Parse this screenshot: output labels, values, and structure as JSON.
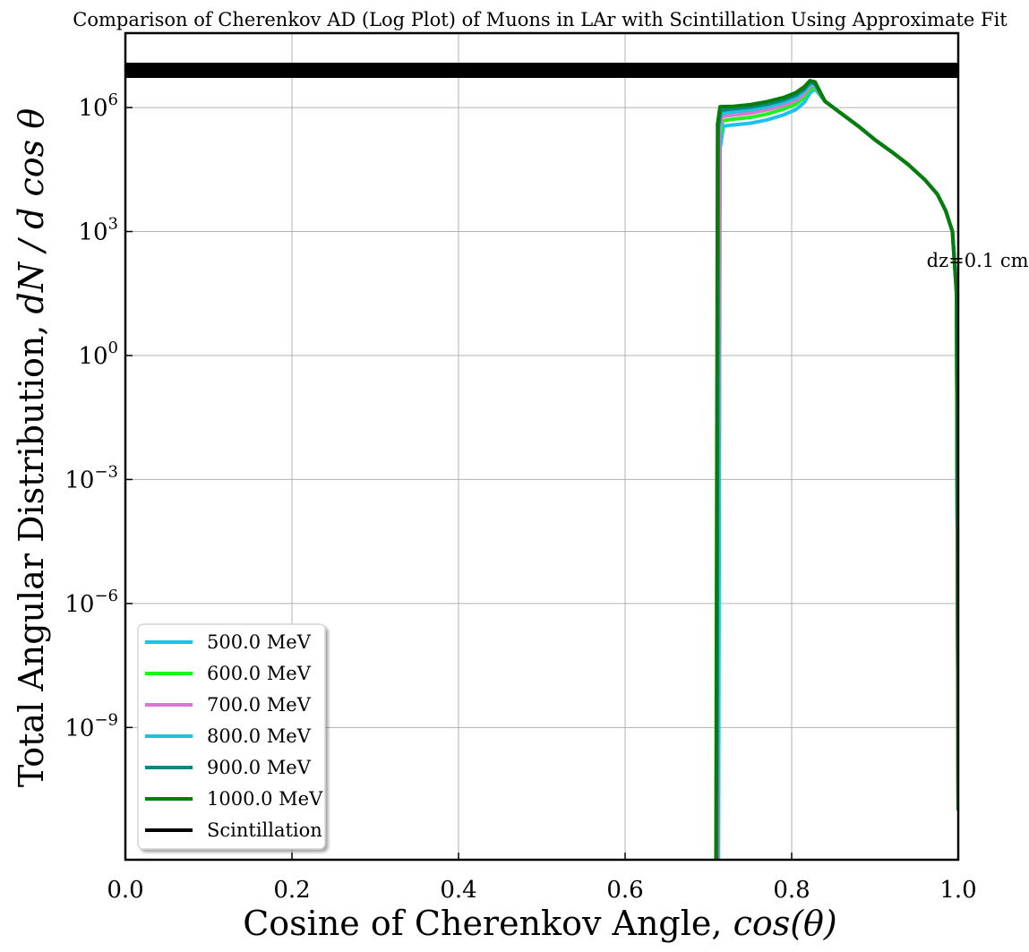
{
  "chart_data": {
    "type": "line",
    "title": "Comparison of Cherenkov AD (Log Plot) of Muons in LAr with Scintillation Using Approximate Fit",
    "xlabel": "Cosine of Cherenkov Angle,",
    "xlabel_math": "cos(θ)",
    "ylabel": "Total Angular Distribution,",
    "ylabel_math": "dN / d cos θ",
    "xlim": [
      0.0,
      1.0
    ],
    "ylim_log10": [
      -12.2,
      7.8
    ],
    "y_scale": "log",
    "grid": true,
    "legend_position": "lower-left",
    "x_ticks": [
      {
        "value": 0.0,
        "label": "0.0"
      },
      {
        "value": 0.2,
        "label": "0.2"
      },
      {
        "value": 0.4,
        "label": "0.4"
      },
      {
        "value": 0.6,
        "label": "0.6"
      },
      {
        "value": 0.8,
        "label": "0.8"
      },
      {
        "value": 1.0,
        "label": "1.0"
      }
    ],
    "y_ticks": [
      {
        "exp": 6,
        "base": "10",
        "sup": "6"
      },
      {
        "exp": 3,
        "base": "10",
        "sup": "3"
      },
      {
        "exp": 0,
        "base": "10",
        "sup": "0"
      },
      {
        "exp": -3,
        "base": "10",
        "sup": "−3"
      },
      {
        "exp": -6,
        "base": "10",
        "sup": "−6"
      },
      {
        "exp": -9,
        "base": "10",
        "sup": "−9"
      }
    ],
    "annotation": {
      "text": "dz=0.1 cm",
      "x": 0.962,
      "y_log10": 2.3
    },
    "series": [
      {
        "name": "500.0 MeV",
        "color": "#1ec0ef",
        "points": [
          [
            0.712,
            -13.0
          ],
          [
            0.714,
            5.0
          ],
          [
            0.718,
            5.55
          ],
          [
            0.73,
            5.58
          ],
          [
            0.75,
            5.62
          ],
          [
            0.77,
            5.7
          ],
          [
            0.79,
            5.82
          ],
          [
            0.805,
            5.95
          ],
          [
            0.815,
            6.12
          ],
          [
            0.822,
            6.35
          ],
          [
            0.828,
            6.45
          ],
          [
            0.84,
            6.15
          ],
          [
            0.86,
            5.85
          ],
          [
            0.88,
            5.55
          ],
          [
            0.9,
            5.22
          ],
          [
            0.92,
            4.93
          ],
          [
            0.94,
            4.62
          ],
          [
            0.96,
            4.25
          ],
          [
            0.975,
            3.9
          ],
          [
            0.985,
            3.5
          ],
          [
            0.993,
            3.0
          ],
          [
            0.998,
            1.5
          ],
          [
            1.0,
            -11.0
          ]
        ]
      },
      {
        "name": "600.0 MeV",
        "color": "#1cf21c",
        "points": [
          [
            0.711,
            -13.0
          ],
          [
            0.713,
            5.2
          ],
          [
            0.717,
            5.68
          ],
          [
            0.73,
            5.72
          ],
          [
            0.75,
            5.76
          ],
          [
            0.77,
            5.84
          ],
          [
            0.79,
            5.96
          ],
          [
            0.805,
            6.08
          ],
          [
            0.815,
            6.24
          ],
          [
            0.822,
            6.45
          ],
          [
            0.828,
            6.48
          ],
          [
            0.84,
            6.15
          ],
          [
            0.86,
            5.85
          ],
          [
            0.88,
            5.55
          ],
          [
            0.9,
            5.22
          ],
          [
            0.92,
            4.93
          ],
          [
            0.94,
            4.62
          ],
          [
            0.96,
            4.25
          ],
          [
            0.975,
            3.9
          ],
          [
            0.985,
            3.5
          ],
          [
            0.993,
            3.0
          ],
          [
            0.998,
            1.5
          ],
          [
            1.0,
            -11.0
          ]
        ]
      },
      {
        "name": "700.0 MeV",
        "color": "#dd75d5",
        "points": [
          [
            0.711,
            -13.0
          ],
          [
            0.713,
            5.35
          ],
          [
            0.716,
            5.78
          ],
          [
            0.73,
            5.82
          ],
          [
            0.75,
            5.86
          ],
          [
            0.77,
            5.94
          ],
          [
            0.79,
            6.05
          ],
          [
            0.805,
            6.17
          ],
          [
            0.815,
            6.32
          ],
          [
            0.822,
            6.52
          ],
          [
            0.828,
            6.52
          ],
          [
            0.84,
            6.15
          ],
          [
            0.86,
            5.85
          ],
          [
            0.88,
            5.55
          ],
          [
            0.9,
            5.22
          ],
          [
            0.92,
            4.93
          ],
          [
            0.94,
            4.62
          ],
          [
            0.96,
            4.25
          ],
          [
            0.975,
            3.9
          ],
          [
            0.985,
            3.5
          ],
          [
            0.993,
            3.0
          ],
          [
            0.998,
            1.5
          ],
          [
            1.0,
            -11.0
          ]
        ]
      },
      {
        "name": "800.0 MeV",
        "color": "#16c7d6",
        "points": [
          [
            0.71,
            -13.0
          ],
          [
            0.712,
            5.45
          ],
          [
            0.715,
            5.86
          ],
          [
            0.73,
            5.9
          ],
          [
            0.75,
            5.94
          ],
          [
            0.77,
            6.02
          ],
          [
            0.79,
            6.12
          ],
          [
            0.805,
            6.24
          ],
          [
            0.815,
            6.39
          ],
          [
            0.822,
            6.57
          ],
          [
            0.828,
            6.55
          ],
          [
            0.84,
            6.15
          ],
          [
            0.86,
            5.85
          ],
          [
            0.88,
            5.55
          ],
          [
            0.9,
            5.22
          ],
          [
            0.92,
            4.93
          ],
          [
            0.94,
            4.62
          ],
          [
            0.96,
            4.25
          ],
          [
            0.975,
            3.9
          ],
          [
            0.985,
            3.5
          ],
          [
            0.993,
            3.0
          ],
          [
            0.998,
            1.5
          ],
          [
            1.0,
            -11.0
          ]
        ]
      },
      {
        "name": "900.0 MeV",
        "color": "#0e8584",
        "points": [
          [
            0.71,
            -13.0
          ],
          [
            0.712,
            5.55
          ],
          [
            0.715,
            5.93
          ],
          [
            0.73,
            5.97
          ],
          [
            0.75,
            6.01
          ],
          [
            0.77,
            6.08
          ],
          [
            0.79,
            6.18
          ],
          [
            0.805,
            6.3
          ],
          [
            0.815,
            6.44
          ],
          [
            0.822,
            6.61
          ],
          [
            0.828,
            6.58
          ],
          [
            0.84,
            6.15
          ],
          [
            0.86,
            5.85
          ],
          [
            0.88,
            5.55
          ],
          [
            0.9,
            5.22
          ],
          [
            0.92,
            4.93
          ],
          [
            0.94,
            4.62
          ],
          [
            0.96,
            4.25
          ],
          [
            0.975,
            3.9
          ],
          [
            0.985,
            3.5
          ],
          [
            0.993,
            3.0
          ],
          [
            0.998,
            1.5
          ],
          [
            1.0,
            -11.0
          ]
        ]
      },
      {
        "name": "1000.0 MeV",
        "color": "#067d06",
        "points": [
          [
            0.709,
            -13.0
          ],
          [
            0.711,
            5.6
          ],
          [
            0.714,
            6.02
          ],
          [
            0.73,
            6.03
          ],
          [
            0.75,
            6.07
          ],
          [
            0.77,
            6.14
          ],
          [
            0.79,
            6.24
          ],
          [
            0.805,
            6.36
          ],
          [
            0.815,
            6.5
          ],
          [
            0.822,
            6.65
          ],
          [
            0.828,
            6.62
          ],
          [
            0.84,
            6.15
          ],
          [
            0.86,
            5.85
          ],
          [
            0.88,
            5.55
          ],
          [
            0.9,
            5.22
          ],
          [
            0.92,
            4.93
          ],
          [
            0.94,
            4.62
          ],
          [
            0.96,
            4.25
          ],
          [
            0.975,
            3.9
          ],
          [
            0.985,
            3.5
          ],
          [
            0.993,
            3.0
          ],
          [
            0.998,
            1.5
          ],
          [
            1.0,
            -11.0
          ]
        ]
      },
      {
        "name": "Scintillation",
        "color": "#000000",
        "points": [
          [
            0.0,
            6.9
          ],
          [
            1.0,
            6.9
          ]
        ]
      }
    ]
  }
}
